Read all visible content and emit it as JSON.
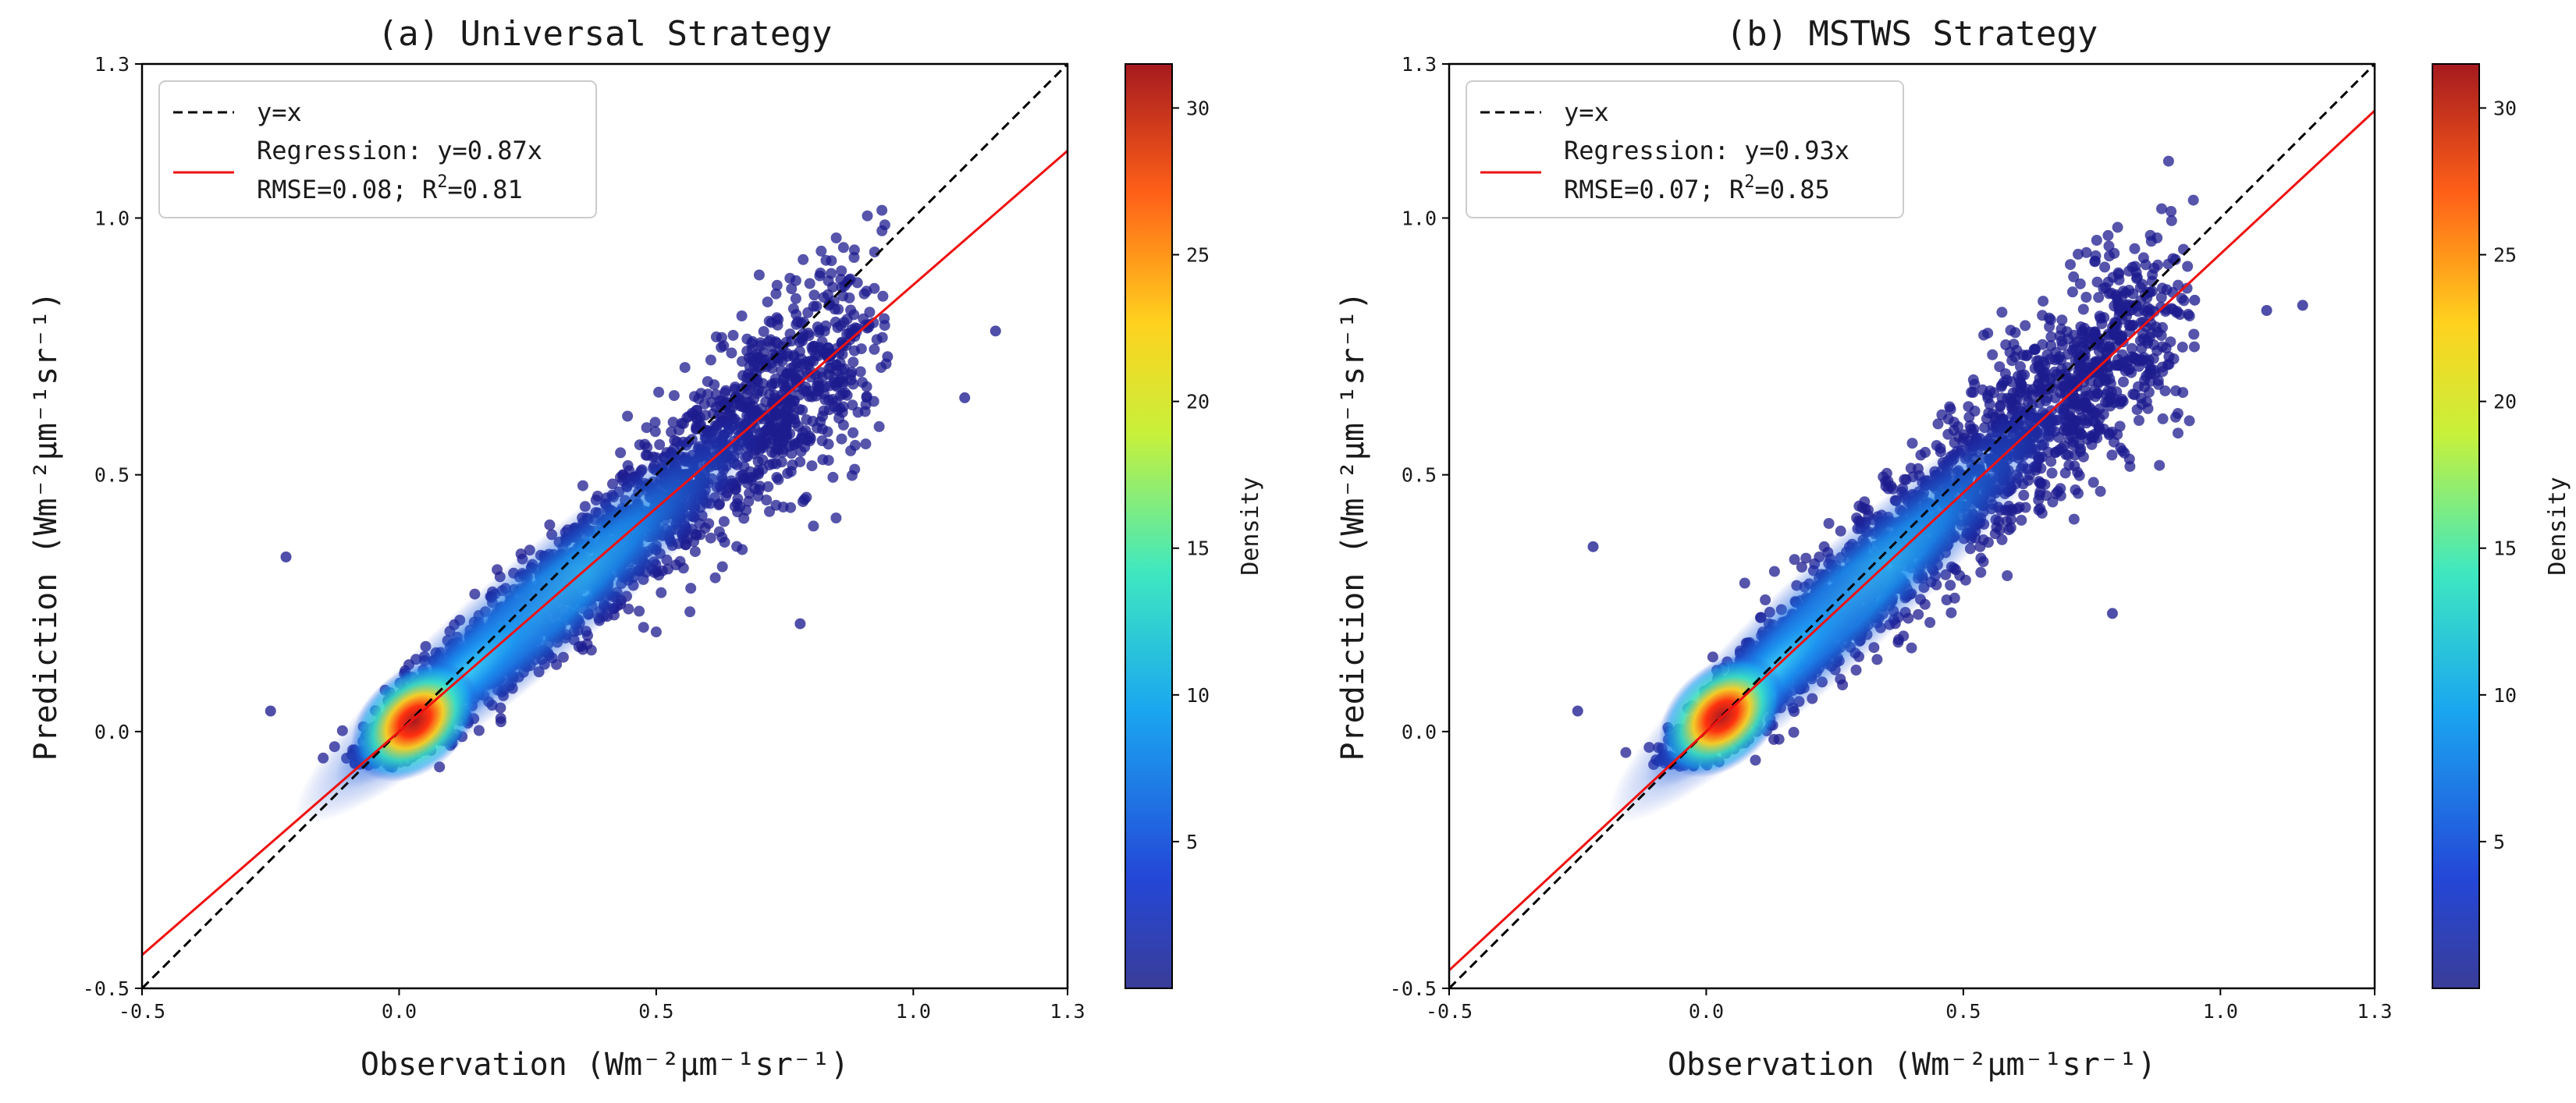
{
  "chart_data": [
    {
      "id": "a",
      "type": "scatter",
      "title": "(a) Universal Strategy",
      "xlabel": "Observation (Wm⁻²μm⁻¹sr⁻¹)",
      "ylabel": "Prediction (Wm⁻²μm⁻¹sr⁻¹)",
      "xlim": [
        -0.5,
        1.3
      ],
      "ylim": [
        -0.5,
        1.3
      ],
      "xticks": [
        -0.5,
        0.0,
        0.5,
        1.0,
        1.3
      ],
      "yticks": [
        -0.5,
        0.0,
        0.5,
        1.0,
        1.3
      ],
      "grid": false,
      "regression_slope": 0.87,
      "regression_intercept": 0.0,
      "rmse": 0.08,
      "r2": 0.81,
      "cloud": {
        "x_center": 0.03,
        "y_center": 0.02,
        "x_max": 0.95,
        "x_min": -0.25
      },
      "outliers": [
        [
          1.16,
          0.78
        ],
        [
          1.1,
          0.65
        ],
        [
          0.95,
          0.73
        ],
        [
          -0.25,
          0.04
        ],
        [
          -0.22,
          0.34
        ],
        [
          0.78,
          0.21
        ],
        [
          0.88,
          0.7
        ]
      ],
      "legend": {
        "position": "top-left",
        "entries": [
          {
            "label": "y=x",
            "style": "dashed",
            "color": "#000000"
          },
          {
            "label": "Regression: y=0.87x",
            "line2": "RMSE=0.08; R",
            "sup": "2",
            "tail": "=0.81",
            "style": "solid",
            "color": "#ee1111"
          }
        ]
      },
      "colorbar": {
        "label": "Density",
        "range": [
          0,
          31.5
        ],
        "ticks": [
          5,
          10,
          15,
          20,
          25,
          30
        ],
        "colormap": "jet"
      }
    },
    {
      "id": "b",
      "type": "scatter",
      "title": "(b) MSTWS Strategy",
      "xlabel": "Observation (Wm⁻²μm⁻¹sr⁻¹)",
      "ylabel": "Prediction (Wm⁻²μm⁻¹sr⁻¹)",
      "xlim": [
        -0.5,
        1.3
      ],
      "ylim": [
        -0.5,
        1.3
      ],
      "xticks": [
        -0.5,
        0.0,
        0.5,
        1.0,
        1.3
      ],
      "yticks": [
        -0.5,
        0.0,
        0.5,
        1.0,
        1.3
      ],
      "grid": false,
      "regression_slope": 0.93,
      "regression_intercept": 0.0,
      "rmse": 0.07,
      "r2": 0.85,
      "cloud": {
        "x_center": 0.03,
        "y_center": 0.03,
        "x_max": 0.95,
        "x_min": -0.25
      },
      "outliers": [
        [
          1.16,
          0.83
        ],
        [
          1.09,
          0.82
        ],
        [
          -0.25,
          0.04
        ],
        [
          -0.22,
          0.36
        ],
        [
          0.79,
          0.23
        ],
        [
          0.95,
          0.84
        ],
        [
          0.9,
          0.73
        ]
      ],
      "legend": {
        "position": "top-left",
        "entries": [
          {
            "label": "y=x",
            "style": "dashed",
            "color": "#000000"
          },
          {
            "label": "Regression: y=0.93x",
            "line2": "RMSE=0.07; R",
            "sup": "2",
            "tail": "=0.85",
            "style": "solid",
            "color": "#ee1111"
          }
        ]
      },
      "colorbar": {
        "label": "Density",
        "range": [
          0,
          31.5
        ],
        "ticks": [
          5,
          10,
          15,
          20,
          25,
          30
        ],
        "colormap": "jet"
      }
    }
  ]
}
